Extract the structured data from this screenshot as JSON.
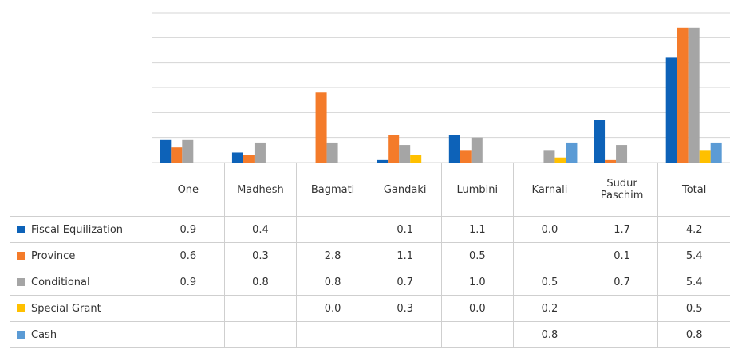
{
  "chart_data": {
    "type": "bar",
    "categories": [
      "One",
      "Madhesh",
      "Bagmati",
      "Gandaki",
      "Lumbini",
      "Karnali",
      "Sudur Paschim",
      "Total"
    ],
    "series": [
      {
        "name": "Fiscal Equilization",
        "color": "#0d62b8",
        "values": [
          0.9,
          0.4,
          null,
          0.1,
          1.1,
          0.0,
          1.7,
          4.2
        ],
        "value_labels": [
          "0.9",
          "0.4",
          null,
          "0.1",
          "1.1",
          "0.0",
          "1.7",
          "4.2"
        ]
      },
      {
        "name": "Province",
        "color": "#f47b2a",
        "values": [
          0.6,
          0.3,
          2.8,
          1.1,
          0.5,
          null,
          0.1,
          5.4
        ],
        "value_labels": [
          "0.6",
          "0.3",
          "2.8",
          "1.1",
          "0.5",
          null,
          "0.1",
          "5.4"
        ]
      },
      {
        "name": "Conditional",
        "color": "#a5a5a5",
        "values": [
          0.9,
          0.8,
          0.8,
          0.7,
          1.0,
          0.5,
          0.7,
          5.4
        ],
        "value_labels": [
          "0.9",
          "0.8",
          "0.8",
          "0.7",
          "1.0",
          "0.5",
          "0.7",
          "5.4"
        ]
      },
      {
        "name": "Special Grant",
        "color": "#ffc000",
        "values": [
          null,
          null,
          0.0,
          0.3,
          0.0,
          0.2,
          null,
          0.5
        ],
        "value_labels": [
          null,
          null,
          "0.0",
          "0.3",
          "0.0",
          "0.2",
          null,
          "0.5"
        ]
      },
      {
        "name": "Cash",
        "color": "#5b9bd5",
        "values": [
          null,
          null,
          null,
          null,
          null,
          0.8,
          null,
          0.8
        ],
        "value_labels": [
          null,
          null,
          null,
          null,
          null,
          "0.8",
          null,
          "0.8"
        ]
      }
    ],
    "ylim": [
      0,
      6
    ],
    "yticks": [
      0,
      1,
      2,
      3,
      4,
      5,
      6
    ],
    "grid": true
  }
}
